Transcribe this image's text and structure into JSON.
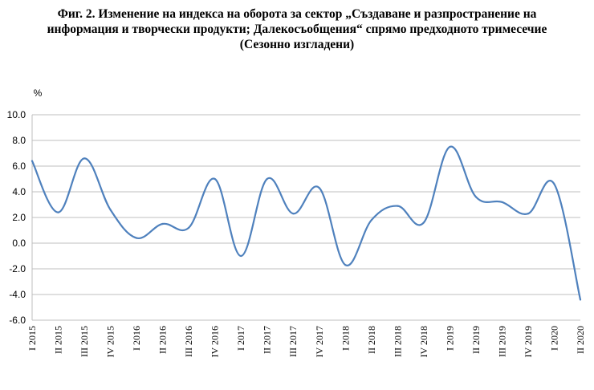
{
  "chart_data": {
    "type": "line",
    "title": [
      "Фиг. 2. Изменение на индекса на оборота за сектор „Създаване и разпространение на",
      "информация и творчески продукти; Далекосъобщения“ спрямо предходното тримесечие",
      "(Сезонно изгладени)"
    ],
    "ylabel": "%",
    "ylim": [
      -6.0,
      10.0
    ],
    "y_ticks": [
      "10.0",
      "8.0",
      "6.0",
      "4.0",
      "2.0",
      "0.0",
      "-2.0",
      "-4.0",
      "-6.0"
    ],
    "y_tick_values": [
      10,
      8,
      6,
      4,
      2,
      0,
      -2,
      -4,
      -6
    ],
    "grid": true,
    "legend": "none",
    "series_color": "#4F81BD",
    "categories": [
      "I 2015",
      "II 2015",
      "III 2015",
      "IV 2015",
      "I 2016",
      "II 2016",
      "III 2016",
      "IV 2016",
      "I 2017",
      "II 2017",
      "III 2017",
      "IV 2017",
      "I 2018",
      "II 2018",
      "III 2018",
      "IV 2018",
      "I 2019",
      "II 2019",
      "III 2019",
      "IV 2019",
      "I 2020",
      "II 2020"
    ],
    "series": [
      {
        "values": [
          6.4,
          2.4,
          6.6,
          2.6,
          0.4,
          1.5,
          1.2,
          5.0,
          -1.0,
          5.0,
          2.3,
          4.3,
          -1.7,
          1.8,
          2.9,
          1.6,
          7.5,
          3.6,
          3.2,
          2.3,
          4.6,
          -4.4
        ]
      }
    ]
  }
}
